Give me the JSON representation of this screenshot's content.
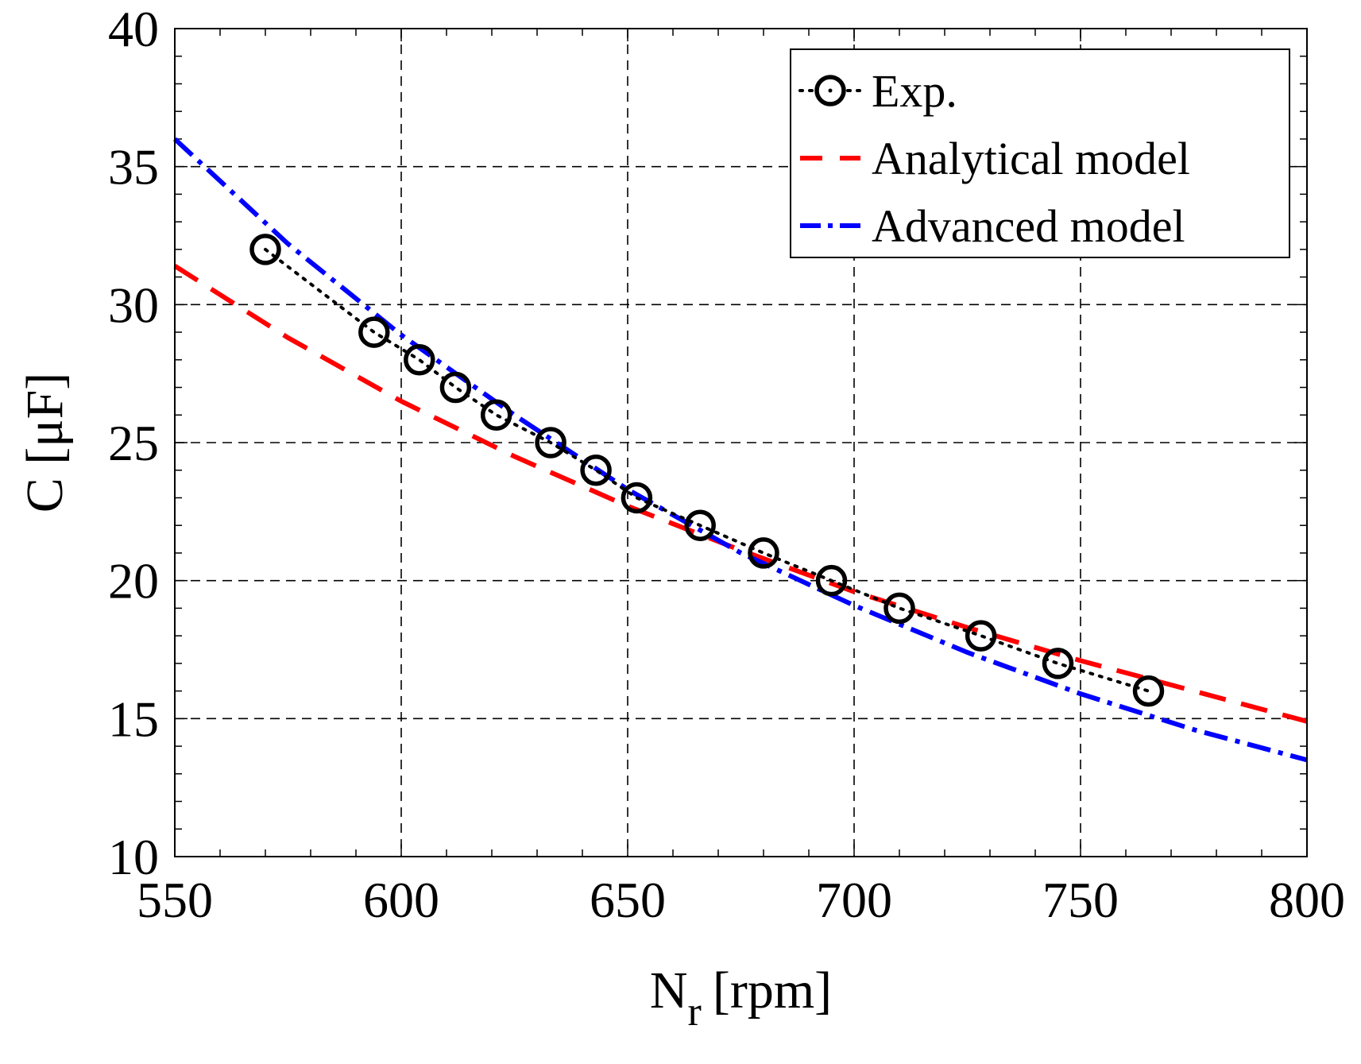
{
  "chart_data": {
    "type": "line",
    "title": "",
    "xlabel": "N",
    "xlabel_subscript": "r",
    "xlabel_unit": "[rpm]",
    "ylabel": "C [μF]",
    "xlim": [
      550,
      800
    ],
    "ylim": [
      10,
      40
    ],
    "x_ticks": [
      550,
      600,
      650,
      700,
      750,
      800
    ],
    "y_ticks": [
      10,
      15,
      20,
      25,
      30,
      35,
      40
    ],
    "x_tick_labels": [
      "550",
      "600",
      "650",
      "700",
      "750",
      "800"
    ],
    "y_tick_labels": [
      "10",
      "15",
      "20",
      "25",
      "30",
      "35",
      "40"
    ],
    "x_grid": [
      600,
      650,
      700,
      750
    ],
    "y_grid": [
      15,
      20,
      25,
      30,
      35
    ],
    "x_minor_step": 10,
    "y_minor_step": 1,
    "grid": true,
    "legend_position": "top-right",
    "series": [
      {
        "name": "Exp.",
        "style": "dotted-circles",
        "color": "#000000",
        "x": [
          570,
          594,
          604,
          612,
          621,
          633,
          643,
          652,
          666,
          680,
          695,
          710,
          728,
          745,
          765
        ],
        "y": [
          32,
          29,
          28,
          27,
          26,
          25,
          24,
          23,
          22,
          21,
          20,
          19,
          18,
          17,
          16
        ]
      },
      {
        "name": "Analytical model",
        "style": "dashed",
        "color": "#ff0000",
        "x": [
          550,
          575,
          600,
          625,
          650,
          675,
          700,
          725,
          750,
          775,
          800
        ],
        "y": [
          31.4,
          28.8,
          26.5,
          24.5,
          22.7,
          21.1,
          19.6,
          18.3,
          17.1,
          16.0,
          14.9
        ]
      },
      {
        "name": "Advanced model",
        "style": "dash-dot",
        "color": "#0000ff",
        "x": [
          550,
          575,
          600,
          625,
          650,
          675,
          700,
          725,
          750,
          775,
          800
        ],
        "y": [
          36.0,
          32.2,
          28.9,
          26.0,
          23.3,
          21.0,
          19.1,
          17.4,
          15.9,
          14.6,
          13.5
        ]
      }
    ]
  }
}
